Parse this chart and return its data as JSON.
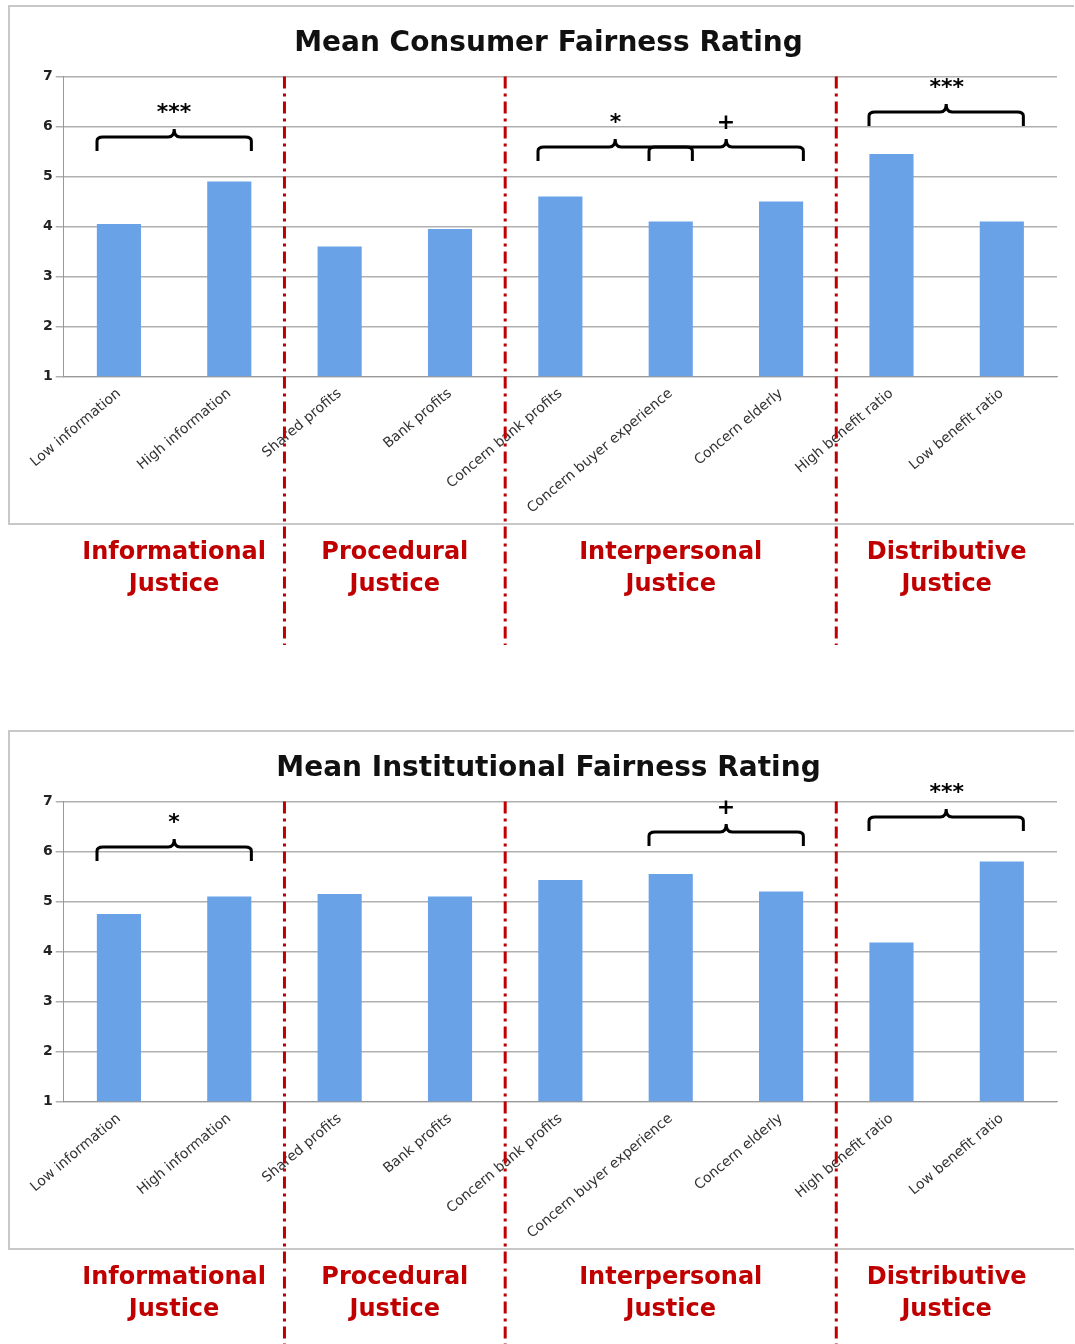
{
  "chart_data": [
    {
      "type": "bar",
      "title": "Mean Consumer Fairness Rating",
      "categories": [
        "Low information",
        "High information",
        "Shared profits",
        "Bank profits",
        "Concern bank profits",
        "Concern buyer experience",
        "Concern elderly",
        "High benefit ratio",
        "Low benefit ratio"
      ],
      "values": [
        4.05,
        4.9,
        3.6,
        3.95,
        4.6,
        4.1,
        4.5,
        5.45,
        4.1
      ],
      "color": "#6aa2e8",
      "ylim": [
        1,
        7
      ],
      "yticks": [
        1,
        2,
        3,
        4,
        5,
        6,
        7
      ],
      "grid": "y",
      "legend": false,
      "annotations": [
        "***",
        "*",
        "+",
        "***",
        "Informational Justice",
        "Procedural Justice",
        "Interpersonal Justice",
        "Distributive Justice"
      ]
    },
    {
      "type": "bar",
      "title": "Mean Institutional Fairness Rating",
      "categories": [
        "Low information",
        "High information",
        "Shared profits",
        "Bank profits",
        "Concern bank profits",
        "Concern buyer experience",
        "Concern elderly",
        "High benefit ratio",
        "Low benefit ratio"
      ],
      "values": [
        4.75,
        5.1,
        5.15,
        5.1,
        5.43,
        5.55,
        5.2,
        4.18,
        5.8
      ],
      "color": "#6aa2e8",
      "ylim": [
        1,
        7
      ],
      "yticks": [
        1,
        2,
        3,
        4,
        5,
        6,
        7
      ],
      "grid": "y",
      "legend": false,
      "annotations": [
        "*",
        "+",
        "***",
        "Informational Justice",
        "Procedural Justice",
        "Interpersonal Justice",
        "Distributive Justice"
      ]
    }
  ]
}
